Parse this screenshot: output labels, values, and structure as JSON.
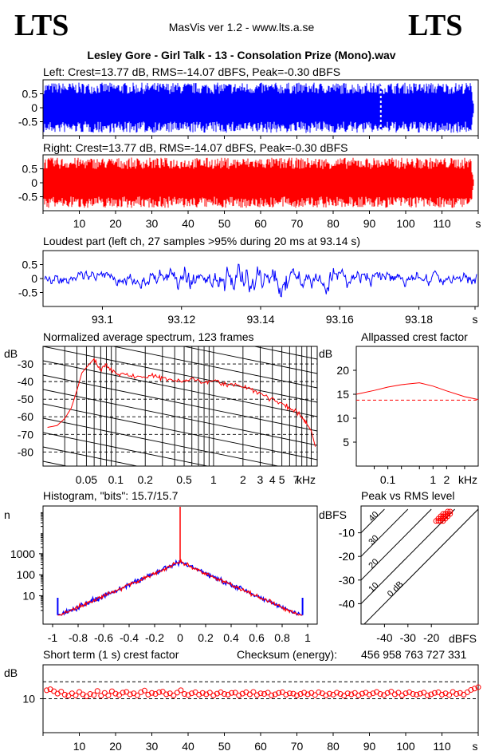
{
  "header": {
    "logo_left": "LTS",
    "logo_right": "LTS",
    "app_title": "MasVis ver 1.2 - www.lts.a.se",
    "file_title": "Lesley Gore - Girl Talk - 13 - Consolation Prize  (Mono).wav"
  },
  "colors": {
    "left": "#0000ff",
    "right": "#ff0000",
    "axis": "#000000"
  },
  "chart_data": [
    {
      "id": "left",
      "type": "area",
      "title": "Left: Crest=13.77 dB, RMS=-14.07 dBFS, Peak=-0.30 dBFS",
      "yticks": [
        "0.5",
        "0",
        "-0.5"
      ],
      "ylim": [
        -1,
        1
      ],
      "xlim": [
        0,
        120
      ],
      "loudest_marker_s": 93.14,
      "envelope_peak": 0.9
    },
    {
      "id": "right",
      "type": "area",
      "title": "Right: Crest=13.77 dB, RMS=-14.07 dBFS, Peak=-0.30 dBFS",
      "yticks": [
        "0.5",
        "0",
        "-0.5"
      ],
      "xticks": [
        "10",
        "20",
        "30",
        "40",
        "50",
        "60",
        "70",
        "80",
        "90",
        "100",
        "110",
        "s"
      ],
      "ylim": [
        -1,
        1
      ],
      "xlim": [
        0,
        120
      ],
      "envelope_peak": 0.9
    },
    {
      "id": "loudest",
      "type": "line",
      "title": "Loudest part (left  ch, 27 samples >95% during 20 ms at 93.14 s)",
      "yticks": [
        "0.5",
        "0",
        "-0.5"
      ],
      "xticks": [
        "93.1",
        "93.12",
        "93.14",
        "93.16",
        "93.18",
        "s"
      ],
      "xlim": [
        93.085,
        93.195
      ],
      "ylim": [
        -1,
        1
      ]
    },
    {
      "id": "spectrum",
      "type": "line",
      "title": "Normalized average spectrum, 123 frames",
      "ylabel": "dB",
      "yticks": [
        "-30",
        "-40",
        "-50",
        "-60",
        "-70",
        "-80"
      ],
      "xticks": [
        "0.05",
        "0.1",
        "0.2",
        "0.5",
        "1",
        "2",
        "3",
        "4",
        "5",
        "7",
        "kHz"
      ],
      "x_khz": [
        0.02,
        0.025,
        0.03,
        0.035,
        0.04,
        0.045,
        0.05,
        0.06,
        0.07,
        0.08,
        0.1,
        0.12,
        0.15,
        0.2,
        0.25,
        0.3,
        0.4,
        0.5,
        0.6,
        0.8,
        1,
        1.2,
        1.5,
        2,
        2.5,
        3,
        4,
        5,
        6,
        7,
        8,
        9,
        10,
        11
      ],
      "y_db": [
        -66,
        -65,
        -61,
        -55,
        -45,
        -35,
        -32,
        -27,
        -34,
        -30,
        -35,
        -36,
        -37,
        -38,
        -37,
        -38,
        -39,
        -40,
        -38,
        -40,
        -39,
        -41,
        -42,
        -43,
        -45,
        -47,
        -50,
        -53,
        -55,
        -57,
        -60,
        -64,
        -68,
        -77
      ],
      "ylim": [
        -88,
        -20
      ]
    },
    {
      "id": "allpass",
      "type": "line",
      "title": "Allpassed crest factor",
      "ylabel": "dB",
      "yticks": [
        "20",
        "15",
        "10",
        "5"
      ],
      "xticks": [
        "0.1",
        "1",
        "2",
        "kHz"
      ],
      "x_khz": [
        0.02,
        0.05,
        0.1,
        0.2,
        0.5,
        1,
        2,
        5,
        10
      ],
      "y_db": [
        15.0,
        15.8,
        16.5,
        17.0,
        17.4,
        16.7,
        15.7,
        14.5,
        13.9
      ],
      "reference_db": 13.77,
      "ylim": [
        0,
        25
      ]
    },
    {
      "id": "histogram",
      "type": "line",
      "title": "Histogram, \"bits\": 15.7/15.7",
      "ylabel": "n",
      "yticks": [
        "1000",
        "100",
        "10"
      ],
      "xticks": [
        "-1",
        "-0.8",
        "-0.6",
        "-0.4",
        "-0.2",
        "0",
        "0.2",
        "0.4",
        "0.6",
        "0.8",
        "1"
      ],
      "x": [
        -0.97,
        -0.9,
        -0.8,
        -0.6,
        -0.4,
        -0.2,
        0,
        0.2,
        0.4,
        0.6,
        0.8,
        0.9,
        0.97
      ],
      "y_count": [
        2,
        4,
        7,
        20,
        60,
        150,
        400,
        150,
        60,
        20,
        7,
        4,
        2
      ],
      "center_spike": 80000,
      "edge_spikes": [
        0.96,
        -0.96
      ]
    },
    {
      "id": "peak_vs_rms",
      "type": "scatter",
      "title": "Peak vs RMS level",
      "ylabel": "dBFS",
      "xlabel": "dBFS",
      "yticks": [
        "-10",
        "-20",
        "-30",
        "-40"
      ],
      "xticks": [
        "-40",
        "-30",
        "-20"
      ],
      "diagonals": [
        "40",
        "30",
        "20",
        "10",
        "0 dB"
      ],
      "points": [
        [
          -17,
          -5
        ],
        [
          -16,
          -4
        ],
        [
          -15,
          -3
        ],
        [
          -14,
          -2
        ],
        [
          -15,
          -4
        ],
        [
          -16,
          -5
        ],
        [
          -13,
          -1
        ],
        [
          -14,
          -3
        ],
        [
          -17,
          -4
        ],
        [
          -15,
          -2
        ],
        [
          -13,
          -2
        ],
        [
          -12,
          -1
        ],
        [
          -16,
          -3
        ],
        [
          -14,
          -4
        ],
        [
          -15,
          -5
        ],
        [
          -13,
          -3
        ],
        [
          -18,
          -5
        ],
        [
          -12,
          -2
        ]
      ]
    },
    {
      "id": "short_term_crest",
      "type": "scatter",
      "title": "Short term (1 s) crest factor",
      "checksum_label": "Checksum (energy):",
      "checksum_value": "456 958 763 727 331",
      "ylabel": "dB",
      "yticks": [
        "10"
      ],
      "xticks": [
        "10",
        "20",
        "30",
        "40",
        "50",
        "60",
        "70",
        "80",
        "90",
        "100",
        "110",
        "s"
      ],
      "xlim": [
        0,
        120
      ],
      "ylim": [
        0,
        20
      ],
      "guide_lines_db": [
        15,
        10
      ],
      "values_db": [
        12.5,
        12.8,
        12.2,
        11.5,
        12.1,
        11.2,
        10.9,
        11.6,
        11.0,
        12.0,
        11.3,
        10.7,
        11.4,
        11.1,
        12.3,
        10.9,
        11.7,
        11.0,
        12.2,
        11.5,
        11.1,
        11.8,
        12.0,
        11.3,
        11.6,
        11.0,
        11.9,
        12.4,
        11.2,
        11.7,
        11.4,
        11.9,
        12.1,
        11.3,
        11.6,
        11.0,
        11.8,
        12.5,
        11.4,
        11.1,
        11.6,
        11.9,
        11.2,
        11.7,
        11.3,
        11.8,
        11.0,
        11.5,
        11.9,
        11.4,
        11.2,
        11.7,
        11.8,
        11.0,
        11.5,
        11.9,
        11.3,
        12.0,
        11.1,
        11.6,
        11.4,
        11.8,
        11.0,
        11.3,
        11.7,
        11.9,
        11.2,
        11.6,
        11.5,
        11.0,
        11.4,
        11.8,
        11.3,
        11.7,
        11.1,
        11.9,
        11.6,
        11.0,
        11.5,
        11.2,
        11.8,
        11.4,
        10.9,
        11.6,
        11.3,
        11.7,
        11.0,
        11.5,
        11.8,
        11.2,
        11.6,
        12.0,
        11.4,
        11.1,
        11.7,
        12.1,
        11.3,
        11.8,
        11.0,
        11.6,
        11.9,
        11.4,
        11.2,
        11.5,
        11.8,
        11.0,
        11.3,
        11.7,
        11.9,
        11.2,
        11.6,
        11.1,
        12.0,
        11.4,
        11.7,
        11.2,
        11.9,
        12.6,
        13.0,
        13.4
      ]
    }
  ]
}
